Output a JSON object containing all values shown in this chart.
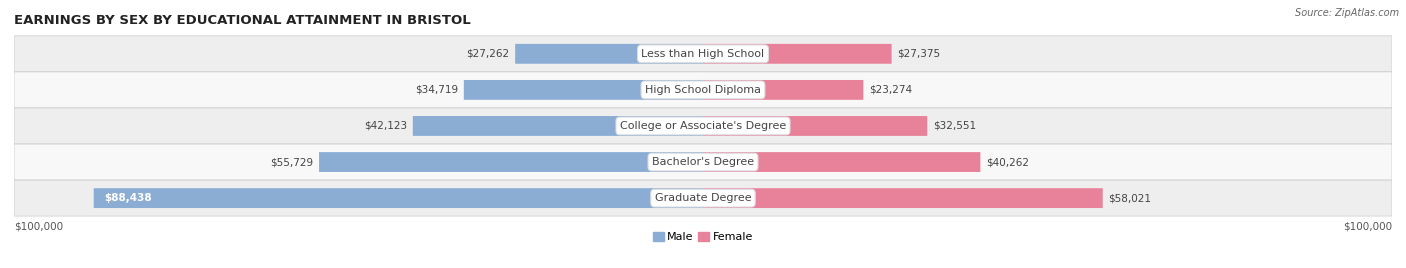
{
  "title": "EARNINGS BY SEX BY EDUCATIONAL ATTAINMENT IN BRISTOL",
  "source": "Source: ZipAtlas.com",
  "categories": [
    "Less than High School",
    "High School Diploma",
    "College or Associate's Degree",
    "Bachelor's Degree",
    "Graduate Degree"
  ],
  "male_values": [
    27262,
    34719,
    42123,
    55729,
    88438
  ],
  "female_values": [
    27375,
    23274,
    32551,
    40262,
    58021
  ],
  "male_color": "#8badd4",
  "female_color": "#e8829a",
  "max_val": 100000,
  "bg_colors": [
    "#eeeeee",
    "#f8f8f8",
    "#eeeeee",
    "#f8f8f8",
    "#eeeeee"
  ],
  "bar_height": 0.55,
  "title_fontsize": 9.5,
  "label_fontsize": 8,
  "value_fontsize": 7.5,
  "source_fontsize": 7,
  "axis_label_left": "$100,000",
  "axis_label_right": "$100,000"
}
